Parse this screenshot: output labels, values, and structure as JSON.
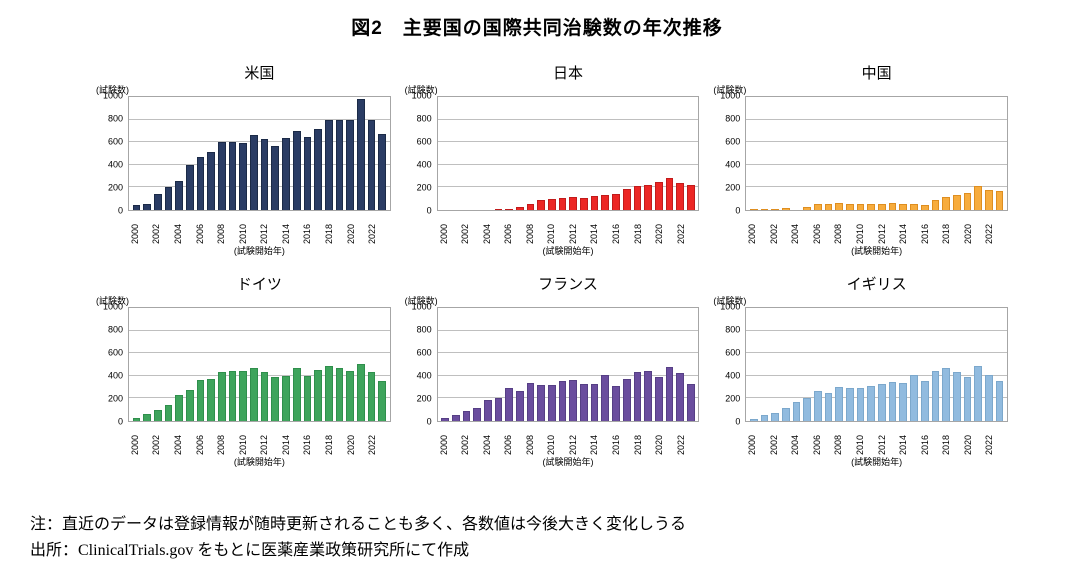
{
  "page": {
    "title": "図2　主要国の国際共同治験数の年次推移"
  },
  "notes": {
    "note": "注：直近のデータは登録情報が随時更新されることも多く、各数値は今後大きく変化しうる",
    "source": "出所：ClinicalTrials.gov をもとに医薬産業政策研究所にて作成"
  },
  "chart_data": {
    "type": "bar",
    "layout": "2x3 small multiples",
    "grid": true,
    "legend": false,
    "ylabel": "(試験数)",
    "xlabel": "(試験開始年)",
    "ylim": [
      0,
      1000
    ],
    "y_ticks": [
      0,
      200,
      400,
      600,
      800,
      1000
    ],
    "x": [
      2000,
      2001,
      2002,
      2003,
      2004,
      2005,
      2006,
      2007,
      2008,
      2009,
      2010,
      2011,
      2012,
      2013,
      2014,
      2015,
      2016,
      2017,
      2018,
      2019,
      2020,
      2021,
      2022,
      2023
    ],
    "x_tick_labels": [
      2000,
      2002,
      2004,
      2006,
      2008,
      2010,
      2012,
      2014,
      2016,
      2018,
      2020,
      2022
    ],
    "series": [
      {
        "name": "米国",
        "key": "usa",
        "color": "#2a3c64",
        "border_color": "#1b2a47",
        "values": [
          40,
          55,
          140,
          205,
          255,
          395,
          470,
          510,
          605,
          600,
          590,
          660,
          625,
          570,
          635,
          695,
          645,
          715,
          800,
          800,
          795,
          985,
          800,
          670
        ]
      },
      {
        "name": "日本",
        "key": "japan",
        "color": "#ec2624",
        "border_color": "#c11b1b",
        "values": [
          0,
          0,
          0,
          0,
          0,
          5,
          10,
          30,
          50,
          90,
          100,
          105,
          115,
          110,
          120,
          130,
          140,
          185,
          215,
          220,
          245,
          285,
          235,
          220
        ]
      },
      {
        "name": "中国",
        "key": "china",
        "color": "#f7ac3d",
        "border_color": "#de8e20",
        "values": [
          5,
          3,
          10,
          15,
          0,
          25,
          50,
          55,
          60,
          50,
          55,
          50,
          55,
          60,
          50,
          55,
          45,
          90,
          115,
          135,
          155,
          210,
          175,
          165
        ]
      },
      {
        "name": "ドイツ",
        "key": "germany",
        "color": "#3ea45c",
        "border_color": "#2f8f4c",
        "values": [
          30,
          60,
          100,
          145,
          230,
          275,
          360,
          375,
          435,
          440,
          440,
          465,
          430,
          390,
          400,
          470,
          400,
          450,
          485,
          465,
          440,
          505,
          430,
          350
        ]
      },
      {
        "name": "フランス",
        "key": "france",
        "color": "#6a4d9e",
        "border_color": "#563f85",
        "values": [
          25,
          50,
          85,
          115,
          185,
          205,
          290,
          270,
          340,
          320,
          315,
          355,
          360,
          325,
          330,
          410,
          310,
          375,
          430,
          440,
          390,
          480,
          425,
          325
        ]
      },
      {
        "name": "イギリス",
        "key": "uk",
        "color": "#91bbdf",
        "border_color": "#7ca8cc",
        "values": [
          15,
          50,
          75,
          115,
          165,
          205,
          265,
          250,
          300,
          295,
          295,
          310,
          330,
          345,
          340,
          410,
          355,
          440,
          470,
          430,
          390,
          490,
          410,
          355
        ]
      }
    ]
  }
}
